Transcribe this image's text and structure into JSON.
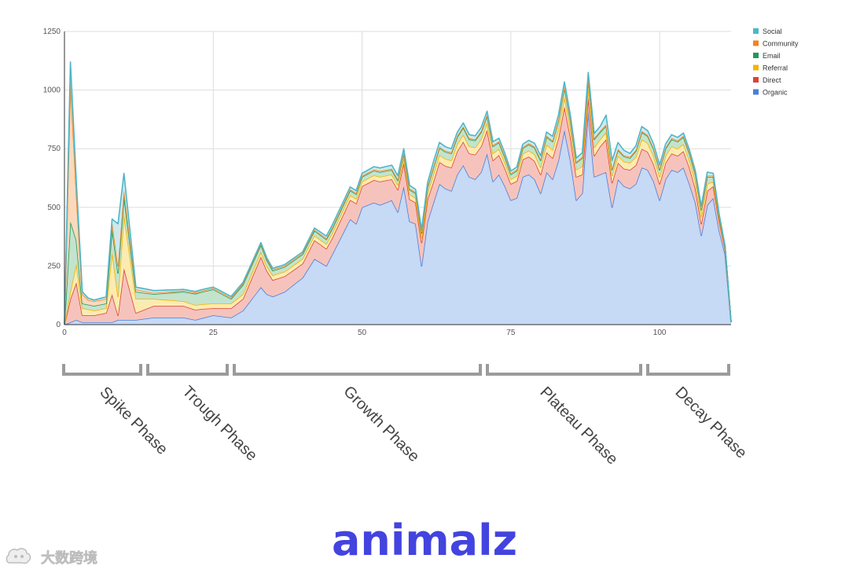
{
  "chart_data": {
    "type": "area",
    "stacked": true,
    "xlim": [
      0,
      112
    ],
    "ylim": [
      0,
      1250
    ],
    "x_ticks": [
      0,
      25,
      50,
      75,
      100
    ],
    "y_ticks": [
      0,
      250,
      500,
      750,
      1000,
      1250
    ],
    "x_tick_labels": [
      "0",
      "25",
      "50",
      "75",
      "100"
    ],
    "y_tick_labels": [
      "0",
      "250",
      "500",
      "750",
      "1000",
      "1250"
    ],
    "grid": true,
    "legend_position": "top-right",
    "series": [
      {
        "name": "Social",
        "color": "#4db6c7",
        "fill": "#cfe8ec",
        "points": [
          [
            0,
            0
          ],
          [
            1,
            80
          ],
          [
            2,
            50
          ],
          [
            3,
            10
          ],
          [
            5,
            5
          ],
          [
            8,
            10
          ],
          [
            9,
            180
          ],
          [
            10,
            70
          ],
          [
            12,
            10
          ],
          [
            15,
            10
          ],
          [
            20,
            5
          ],
          [
            25,
            5
          ],
          [
            30,
            5
          ],
          [
            33,
            5
          ],
          [
            35,
            5
          ],
          [
            40,
            5
          ],
          [
            45,
            10
          ],
          [
            50,
            10
          ],
          [
            55,
            15
          ],
          [
            57,
            15
          ],
          [
            60,
            10
          ],
          [
            62,
            20
          ],
          [
            65,
            15
          ],
          [
            68,
            15
          ],
          [
            70,
            15
          ],
          [
            72,
            15
          ],
          [
            75,
            10
          ],
          [
            80,
            15
          ],
          [
            84,
            20
          ],
          [
            86,
            15
          ],
          [
            88,
            20
          ],
          [
            90,
            20
          ],
          [
            91,
            40
          ],
          [
            95,
            15
          ],
          [
            97,
            20
          ],
          [
            100,
            15
          ],
          [
            102,
            15
          ],
          [
            105,
            10
          ],
          [
            107,
            10
          ],
          [
            108,
            15
          ],
          [
            110,
            5
          ],
          [
            112,
            0
          ]
        ]
      },
      {
        "name": "Community",
        "color": "#f4831f",
        "fill": "#fcd9bc",
        "points": [
          [
            0,
            0
          ],
          [
            1,
            600
          ],
          [
            2,
            200
          ],
          [
            3,
            40
          ],
          [
            4,
            20
          ],
          [
            7,
            20
          ],
          [
            8,
            30
          ],
          [
            9,
            30
          ],
          [
            10,
            25
          ],
          [
            12,
            10
          ],
          [
            15,
            5
          ],
          [
            20,
            5
          ],
          [
            25,
            5
          ],
          [
            30,
            5
          ],
          [
            35,
            5
          ],
          [
            40,
            5
          ],
          [
            50,
            5
          ],
          [
            60,
            5
          ],
          [
            70,
            5
          ],
          [
            80,
            5
          ],
          [
            90,
            5
          ],
          [
            100,
            5
          ],
          [
            110,
            5
          ],
          [
            112,
            0
          ]
        ]
      },
      {
        "name": "Email",
        "color": "#1e9b58",
        "fill": "#c4e3cc",
        "points": [
          [
            0,
            0
          ],
          [
            1,
            300
          ],
          [
            2,
            100
          ],
          [
            3,
            20
          ],
          [
            5,
            20
          ],
          [
            7,
            20
          ],
          [
            8,
            100
          ],
          [
            9,
            100
          ],
          [
            10,
            80
          ],
          [
            12,
            30
          ],
          [
            15,
            20
          ],
          [
            20,
            40
          ],
          [
            25,
            60
          ],
          [
            28,
            20
          ],
          [
            30,
            40
          ],
          [
            33,
            30
          ],
          [
            35,
            20
          ],
          [
            40,
            20
          ],
          [
            45,
            20
          ],
          [
            50,
            20
          ],
          [
            55,
            20
          ],
          [
            60,
            20
          ],
          [
            62,
            30
          ],
          [
            65,
            30
          ],
          [
            68,
            30
          ],
          [
            70,
            30
          ],
          [
            72,
            30
          ],
          [
            75,
            20
          ],
          [
            80,
            30
          ],
          [
            84,
            40
          ],
          [
            86,
            30
          ],
          [
            88,
            40
          ],
          [
            90,
            30
          ],
          [
            95,
            20
          ],
          [
            97,
            30
          ],
          [
            100,
            30
          ],
          [
            102,
            30
          ],
          [
            105,
            30
          ],
          [
            107,
            30
          ],
          [
            108,
            30
          ],
          [
            110,
            10
          ],
          [
            112,
            0
          ]
        ]
      },
      {
        "name": "Referral",
        "color": "#f4b400",
        "fill": "#fcebb0",
        "points": [
          [
            0,
            0
          ],
          [
            1,
            30
          ],
          [
            2,
            80
          ],
          [
            3,
            30
          ],
          [
            5,
            20
          ],
          [
            7,
            20
          ],
          [
            8,
            180
          ],
          [
            9,
            80
          ],
          [
            10,
            230
          ],
          [
            12,
            60
          ],
          [
            15,
            30
          ],
          [
            20,
            20
          ],
          [
            25,
            20
          ],
          [
            30,
            20
          ],
          [
            33,
            20
          ],
          [
            35,
            20
          ],
          [
            40,
            20
          ],
          [
            45,
            20
          ],
          [
            50,
            20
          ],
          [
            55,
            20
          ],
          [
            60,
            20
          ],
          [
            62,
            30
          ],
          [
            65,
            30
          ],
          [
            68,
            30
          ],
          [
            70,
            30
          ],
          [
            72,
            30
          ],
          [
            75,
            20
          ],
          [
            80,
            30
          ],
          [
            84,
            40
          ],
          [
            86,
            30
          ],
          [
            88,
            40
          ],
          [
            90,
            30
          ],
          [
            95,
            30
          ],
          [
            97,
            40
          ],
          [
            100,
            30
          ],
          [
            102,
            30
          ],
          [
            105,
            30
          ],
          [
            107,
            30
          ],
          [
            108,
            30
          ],
          [
            110,
            10
          ],
          [
            112,
            0
          ]
        ]
      },
      {
        "name": "Direct",
        "color": "#db4437",
        "fill": "#f6c3bc",
        "points": [
          [
            0,
            0
          ],
          [
            1,
            100
          ],
          [
            2,
            160
          ],
          [
            3,
            30
          ],
          [
            5,
            30
          ],
          [
            7,
            40
          ],
          [
            8,
            120
          ],
          [
            9,
            20
          ],
          [
            10,
            220
          ],
          [
            12,
            30
          ],
          [
            15,
            50
          ],
          [
            20,
            50
          ],
          [
            23,
            40
          ],
          [
            25,
            30
          ],
          [
            28,
            40
          ],
          [
            30,
            50
          ],
          [
            33,
            130
          ],
          [
            35,
            70
          ],
          [
            40,
            60
          ],
          [
            42,
            80
          ],
          [
            45,
            70
          ],
          [
            50,
            90
          ],
          [
            53,
            100
          ],
          [
            55,
            90
          ],
          [
            57,
            100
          ],
          [
            59,
            90
          ],
          [
            60,
            100
          ],
          [
            62,
            90
          ],
          [
            65,
            100
          ],
          [
            68,
            100
          ],
          [
            70,
            110
          ],
          [
            72,
            90
          ],
          [
            75,
            70
          ],
          [
            80,
            80
          ],
          [
            84,
            100
          ],
          [
            86,
            100
          ],
          [
            88,
            60
          ],
          [
            90,
            120
          ],
          [
            91,
            140
          ],
          [
            93,
            70
          ],
          [
            95,
            80
          ],
          [
            97,
            80
          ],
          [
            100,
            70
          ],
          [
            102,
            70
          ],
          [
            105,
            70
          ],
          [
            107,
            50
          ],
          [
            108,
            60
          ],
          [
            110,
            40
          ],
          [
            112,
            0
          ]
        ]
      },
      {
        "name": "Organic",
        "color": "#4a7fd9",
        "fill": "#c6d9f5",
        "points": [
          [
            0,
            0
          ],
          [
            1,
            10
          ],
          [
            2,
            20
          ],
          [
            3,
            10
          ],
          [
            5,
            10
          ],
          [
            7,
            10
          ],
          [
            8,
            10
          ],
          [
            9,
            20
          ],
          [
            10,
            20
          ],
          [
            12,
            20
          ],
          [
            15,
            30
          ],
          [
            18,
            30
          ],
          [
            20,
            30
          ],
          [
            22,
            20
          ],
          [
            25,
            40
          ],
          [
            28,
            30
          ],
          [
            30,
            60
          ],
          [
            33,
            160
          ],
          [
            34,
            130
          ],
          [
            35,
            120
          ],
          [
            37,
            140
          ],
          [
            40,
            200
          ],
          [
            42,
            280
          ],
          [
            44,
            250
          ],
          [
            46,
            350
          ],
          [
            48,
            450
          ],
          [
            49,
            430
          ],
          [
            50,
            500
          ],
          [
            52,
            520
          ],
          [
            53,
            510
          ],
          [
            55,
            530
          ],
          [
            56,
            480
          ],
          [
            57,
            590
          ],
          [
            58,
            440
          ],
          [
            59,
            430
          ],
          [
            60,
            250
          ],
          [
            61,
            440
          ],
          [
            62,
            520
          ],
          [
            63,
            600
          ],
          [
            64,
            580
          ],
          [
            65,
            570
          ],
          [
            66,
            640
          ],
          [
            67,
            680
          ],
          [
            68,
            630
          ],
          [
            69,
            620
          ],
          [
            70,
            650
          ],
          [
            71,
            730
          ],
          [
            72,
            610
          ],
          [
            73,
            640
          ],
          [
            74,
            590
          ],
          [
            75,
            530
          ],
          [
            76,
            540
          ],
          [
            77,
            630
          ],
          [
            78,
            640
          ],
          [
            79,
            620
          ],
          [
            80,
            560
          ],
          [
            81,
            650
          ],
          [
            82,
            620
          ],
          [
            83,
            700
          ],
          [
            84,
            830
          ],
          [
            85,
            700
          ],
          [
            86,
            530
          ],
          [
            87,
            560
          ],
          [
            88,
            910
          ],
          [
            89,
            630
          ],
          [
            90,
            640
          ],
          [
            91,
            650
          ],
          [
            92,
            500
          ],
          [
            93,
            620
          ],
          [
            94,
            590
          ],
          [
            95,
            580
          ],
          [
            96,
            600
          ],
          [
            97,
            670
          ],
          [
            98,
            660
          ],
          [
            99,
            610
          ],
          [
            100,
            530
          ],
          [
            101,
            620
          ],
          [
            102,
            660
          ],
          [
            103,
            650
          ],
          [
            104,
            670
          ],
          [
            105,
            600
          ],
          [
            106,
            520
          ],
          [
            107,
            380
          ],
          [
            108,
            510
          ],
          [
            109,
            540
          ],
          [
            110,
            400
          ],
          [
            111,
            300
          ],
          [
            112,
            10
          ]
        ]
      }
    ]
  },
  "phases": [
    {
      "label": "Spike Phase"
    },
    {
      "label": "Trough Phase"
    },
    {
      "label": "Growth Phase"
    },
    {
      "label": "Plateau Phase"
    },
    {
      "label": "Decay Phase"
    }
  ],
  "brand": {
    "name": "animalz",
    "color": "#4343e0"
  },
  "watermark": {
    "text": "大数跨境"
  }
}
